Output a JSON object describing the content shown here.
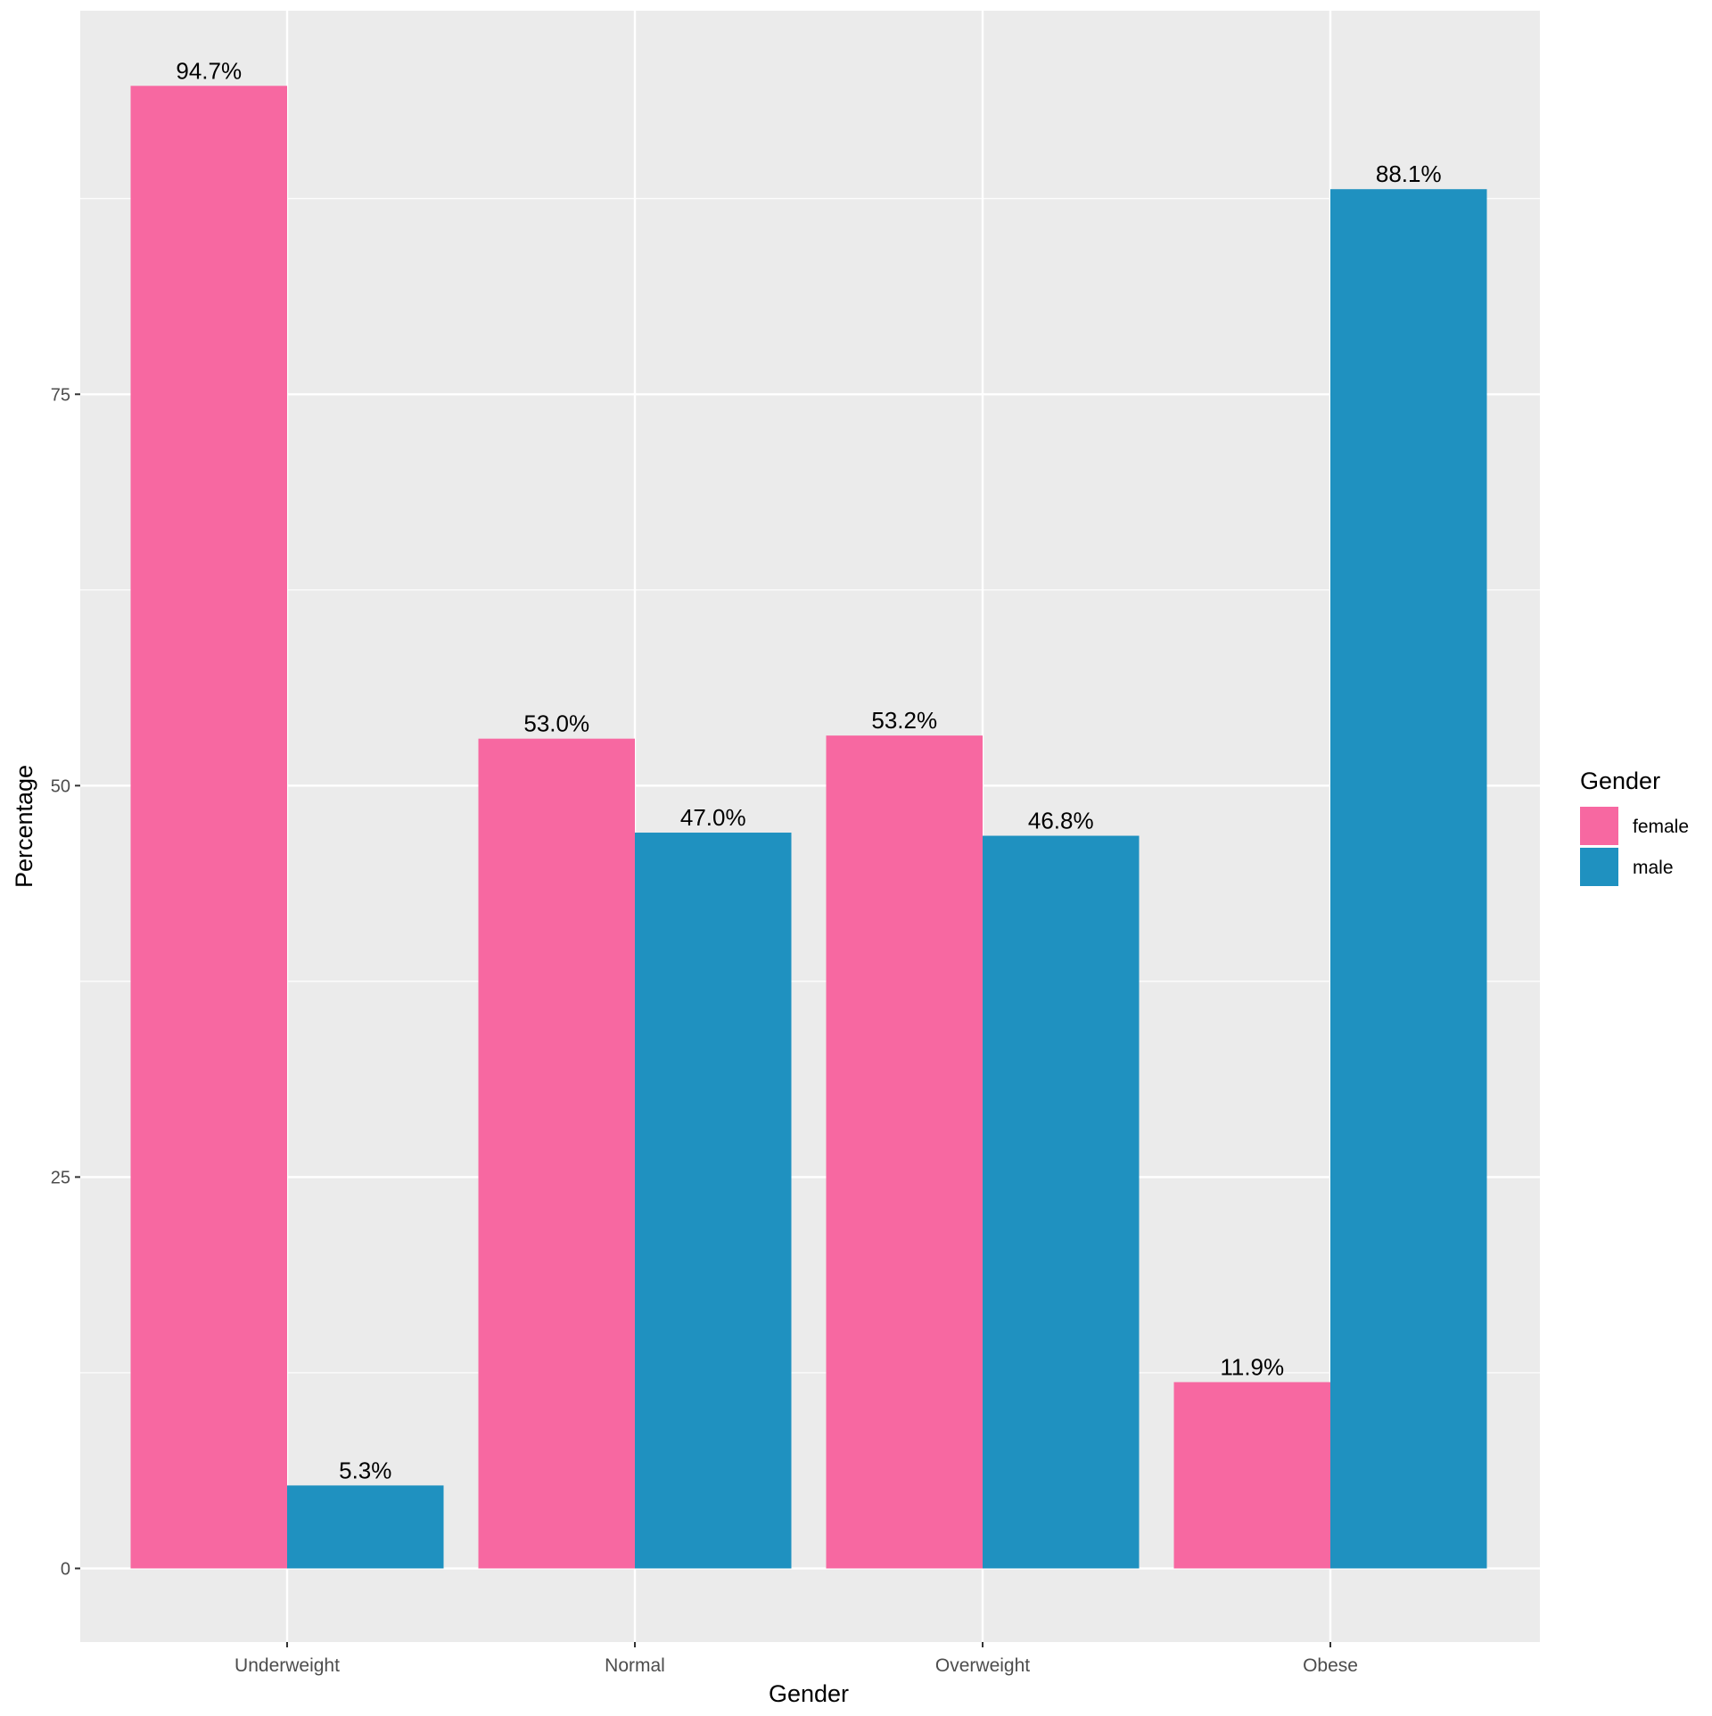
{
  "chart_data": {
    "type": "bar",
    "title": "",
    "xlabel": "Gender",
    "ylabel": "Percentage",
    "categories": [
      "Underweight",
      "Normal",
      "Overweight",
      "Obese"
    ],
    "series": [
      {
        "name": "female",
        "color": "#F768A1",
        "values": [
          94.7,
          53.0,
          53.2,
          11.9
        ],
        "labels": [
          "94.7%",
          "53.0%",
          "53.2%",
          "11.9%"
        ]
      },
      {
        "name": "male",
        "color": "#1F91C0",
        "values": [
          5.3,
          47.0,
          46.8,
          88.1
        ],
        "labels": [
          "5.3%",
          "47.0%",
          "46.8%",
          "88.1%"
        ]
      }
    ],
    "yticks": [
      0,
      25,
      50,
      75
    ],
    "ytick_labels": [
      "0",
      "25",
      "50",
      "75"
    ],
    "ylim": [
      -4.7,
      99.5
    ],
    "grid": true,
    "legend": {
      "title": "Gender",
      "placement": "right"
    }
  }
}
